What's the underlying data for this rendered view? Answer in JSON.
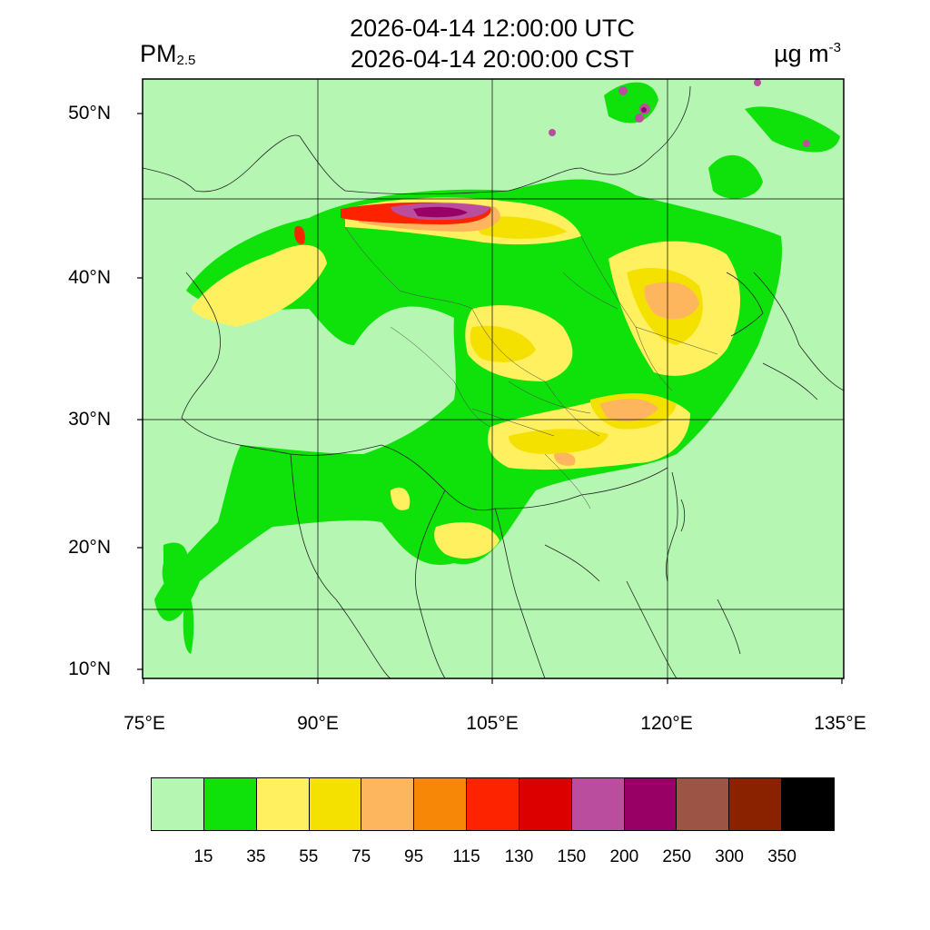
{
  "header": {
    "title_line1": "2026-04-14 12:00:00 UTC",
    "title_line2": "2026-04-14 20:00:00 CST",
    "variable_main": "PM",
    "variable_sub": "2.5",
    "unit_main": "µg m",
    "unit_sup": "-3"
  },
  "axes": {
    "lat_labels": [
      "50°N",
      "40°N",
      "30°N",
      "20°N",
      "10°N"
    ],
    "lon_labels": [
      "75°E",
      "90°E",
      "105°E",
      "120°E",
      "135°E"
    ]
  },
  "colorbar": {
    "colors": [
      "#b5f7b2",
      "#0fe10a",
      "#fff060",
      "#f5e100",
      "#fdb65d",
      "#f78707",
      "#fd2200",
      "#dd0000",
      "#bb4d9e",
      "#990066",
      "#9c5544",
      "#8a2200",
      "#000000"
    ],
    "ticks": [
      "15",
      "35",
      "55",
      "75",
      "95",
      "115",
      "130",
      "150",
      "200",
      "250",
      "300",
      "350"
    ]
  }
}
